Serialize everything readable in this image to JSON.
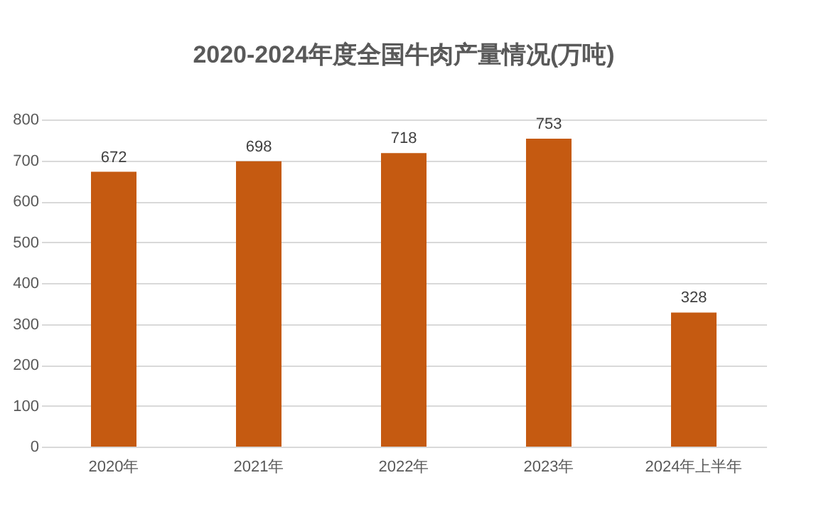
{
  "chart_data": {
    "type": "bar",
    "title": "2020-2024年度全国牛肉产量情况(万吨)",
    "categories": [
      "2020年",
      "2021年",
      "2022年",
      "2023年",
      "2024年上半年"
    ],
    "values": [
      672,
      698,
      718,
      753,
      328
    ],
    "color": "#c55a11",
    "ylim": [
      0,
      800
    ],
    "yticks": [
      0,
      100,
      200,
      300,
      400,
      500,
      600,
      700,
      800
    ],
    "grid": "y",
    "data_labels": true
  }
}
